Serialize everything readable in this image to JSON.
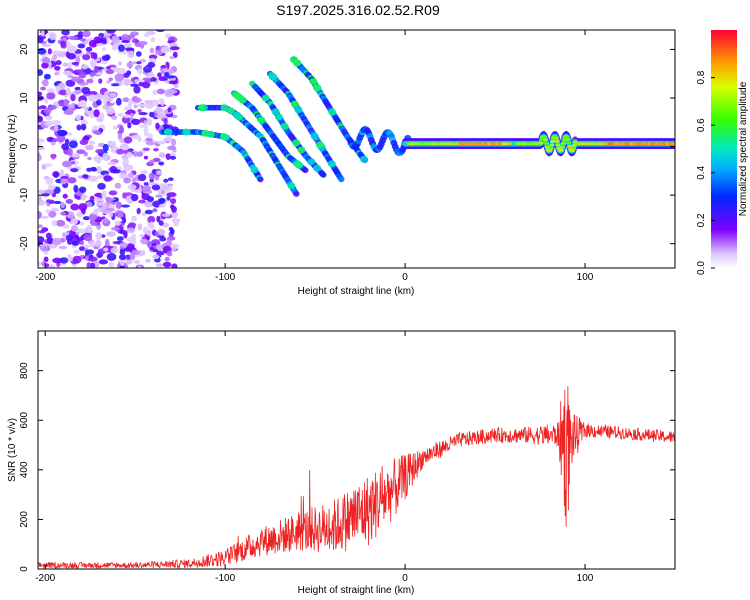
{
  "title": "S197.2025.316.02.52.R09",
  "chart_data": [
    {
      "type": "heatmap",
      "name": "spectrogram",
      "xlabel": "Height of straight line (km)",
      "ylabel": "Frequency (Hz)",
      "xlim": [
        -204,
        150
      ],
      "ylim": [
        -25,
        24
      ],
      "xticks": [
        -200,
        -100,
        0,
        100
      ],
      "yticks": [
        -20,
        -10,
        0,
        10,
        20
      ],
      "colorbar": {
        "label": "Normalized spectral amplitude",
        "range": [
          0,
          1
        ],
        "ticks": [
          "0.0",
          "0.2",
          "0.4",
          "0.6",
          "0.8"
        ]
      },
      "features": {
        "noise_region_km": [
          -204,
          -135
        ],
        "dispersive_branches": [
          {
            "x": [
              -135,
              -115,
              -100,
              -90,
              -80
            ],
            "f": [
              3,
              3,
              2,
              -1,
              -7
            ]
          },
          {
            "x": [
              -115,
              -100,
              -95,
              -80,
              -70,
              -60
            ],
            "f": [
              8,
              8,
              7,
              2,
              -4,
              -10
            ]
          },
          {
            "x": [
              -95,
              -85,
              -75,
              -65,
              -55
            ],
            "f": [
              11,
              8,
              3,
              -2,
              -5
            ]
          },
          {
            "x": [
              -85,
              -75,
              -65,
              -55,
              -45
            ],
            "f": [
              13,
              9,
              3,
              -2,
              -6
            ]
          },
          {
            "x": [
              -75,
              -65,
              -55,
              -45,
              -35
            ],
            "f": [
              15,
              11,
              5,
              -1,
              -7
            ]
          },
          {
            "x": [
              -62,
              -52,
              -42,
              -32,
              -22
            ],
            "f": [
              18,
              14,
              8,
              2,
              -3
            ]
          }
        ],
        "steady_band": {
          "x": [
            0,
            150
          ],
          "f": 0.6
        }
      }
    },
    {
      "type": "line",
      "name": "snr",
      "xlabel": "Height of straight line (km)",
      "ylabel": "SNR (10 * v/v)",
      "xlim": [
        -204,
        150
      ],
      "ylim": [
        0,
        960
      ],
      "xticks": [
        -200,
        -100,
        0,
        100
      ],
      "yticks": [
        0,
        200,
        400,
        600,
        800
      ],
      "color": "#ee2222",
      "envelope": {
        "x": [
          -204,
          -150,
          -120,
          -100,
          -80,
          -60,
          -40,
          -20,
          -5,
          10,
          30,
          50,
          70,
          85,
          88,
          90,
          92,
          100,
          120,
          150
        ],
        "mean": [
          15,
          15,
          22,
          45,
          110,
          150,
          170,
          240,
          330,
          450,
          520,
          540,
          540,
          540,
          520,
          470,
          520,
          560,
          550,
          530
        ],
        "amp": [
          12,
          12,
          18,
          35,
          60,
          80,
          110,
          150,
          120,
          40,
          30,
          30,
          35,
          50,
          250,
          350,
          120,
          30,
          25,
          25
        ]
      }
    }
  ]
}
